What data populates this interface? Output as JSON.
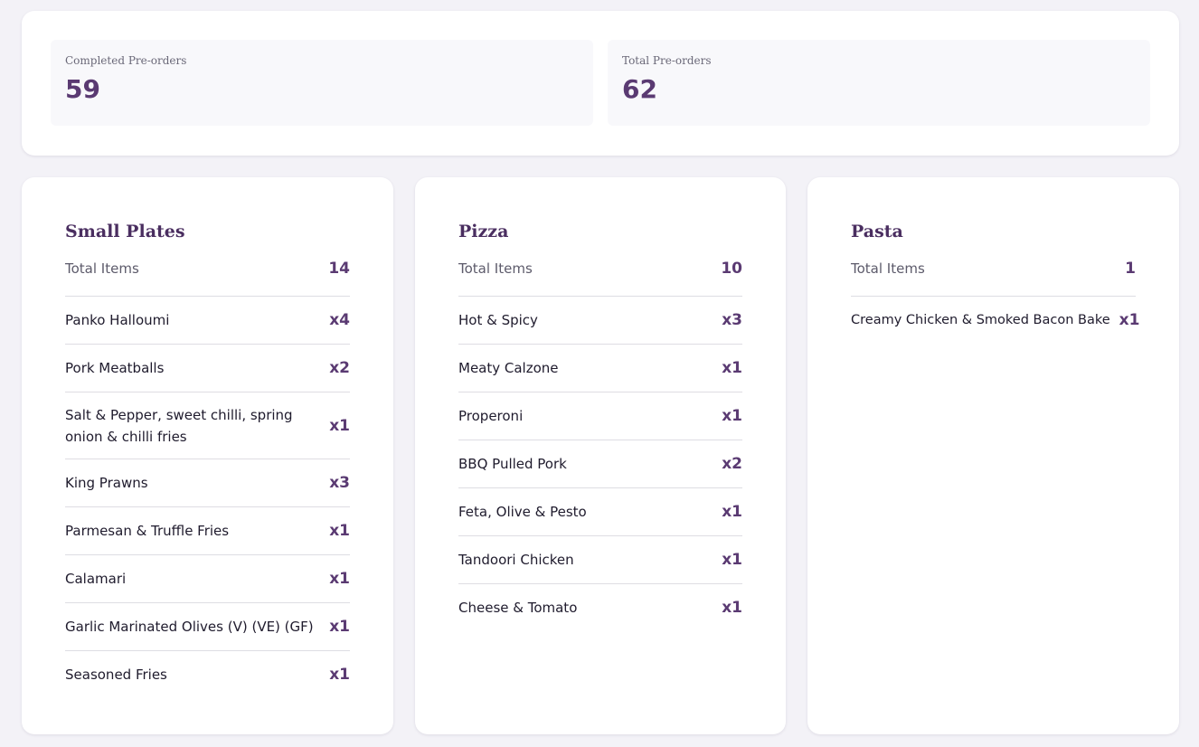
{
  "stats": {
    "completed": {
      "label": "Completed Pre-orders",
      "value": "59"
    },
    "total": {
      "label": "Total Pre-orders",
      "value": "62"
    }
  },
  "categories": [
    {
      "title": "Small Plates",
      "total_label": "Total Items",
      "total_value": "14",
      "items": [
        {
          "name": "Panko Halloumi",
          "qty": "x4"
        },
        {
          "name": "Pork Meatballs",
          "qty": "x2"
        },
        {
          "name": "Salt & Pepper, sweet chilli, spring onion & chilli fries",
          "qty": "x1"
        },
        {
          "name": "King Prawns",
          "qty": "x3"
        },
        {
          "name": "Parmesan & Truffle Fries",
          "qty": "x1"
        },
        {
          "name": "Calamari",
          "qty": "x1"
        },
        {
          "name": "Garlic Marinated Olives (V) (VE) (GF)",
          "qty": "x1"
        },
        {
          "name": "Seasoned Fries",
          "qty": "x1"
        }
      ]
    },
    {
      "title": "Pizza",
      "total_label": "Total Items",
      "total_value": "10",
      "items": [
        {
          "name": "Hot & Spicy",
          "qty": "x3"
        },
        {
          "name": "Meaty Calzone",
          "qty": "x1"
        },
        {
          "name": "Properoni",
          "qty": "x1"
        },
        {
          "name": "BBQ Pulled Pork",
          "qty": "x2"
        },
        {
          "name": "Feta, Olive & Pesto",
          "qty": "x1"
        },
        {
          "name": "Tandoori Chicken",
          "qty": "x1"
        },
        {
          "name": "Cheese & Tomato",
          "qty": "x1"
        }
      ]
    },
    {
      "title": "Pasta",
      "total_label": "Total Items",
      "total_value": "1",
      "items": [
        {
          "name": "Creamy Chicken & Smoked Bacon Bake",
          "qty": "x1"
        }
      ]
    }
  ],
  "colors": {
    "accent": "#5a3a72",
    "title": "#4a2e60",
    "background": "#f3f2f7"
  }
}
